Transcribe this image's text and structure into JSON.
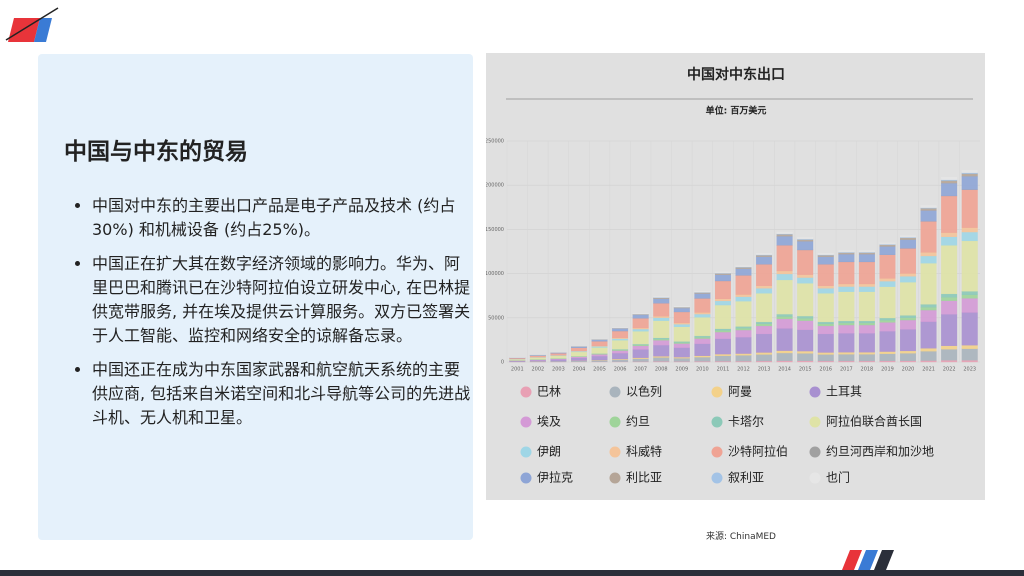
{
  "slide_title": "中国与中东的贸易",
  "bullets": [
    "中国对中东的主要出口产品是电子产品及技术 (约占30%) 和机械设备 (约占25%)。",
    "中国正在扩大其在数字经济领域的影响力。华为、阿里巴巴和腾讯已在沙特阿拉伯设立研发中心, 在巴林提供宽带服务, 并在埃及提供云计算服务。双方已签署关于人工智能、监控和网络安全的谅解备忘录。",
    "中国还正在成为中东国家武器和航空航天系统的主要供应商, 包括来自米诺空间和北斗导航等公司的先进战斗机、无人机和卫星。"
  ],
  "source": "来源: ChinaMED",
  "chart_data": {
    "type": "stacked_bar",
    "title": "中国对中东出口",
    "subtitle": "单位: 百万美元",
    "categories": [
      "2001",
      "2002",
      "2003",
      "2004",
      "2005",
      "2006",
      "2007",
      "2008",
      "2009",
      "2010",
      "2011",
      "2012",
      "2013",
      "2014",
      "2015",
      "2016",
      "2017",
      "2018",
      "2019",
      "2020",
      "2021",
      "2022",
      "2023"
    ],
    "ylim": [
      0,
      250000
    ],
    "yticks": [
      0,
      50000,
      100000,
      150000,
      200000,
      250000
    ],
    "grid": true,
    "series": [
      {
        "name": "巴林",
        "color": "#e8a0b4",
        "values": [
          46,
          74,
          101,
          166,
          240,
          359,
          507,
          682,
          581,
          737,
          940,
          1005,
          1134,
          1355,
          1300,
          1134,
          1161,
          1161,
          1244,
          1318,
          1631,
          1926,
          2000
        ]
      },
      {
        "name": "以色列",
        "color": "#a9b4bd",
        "values": [
          299,
          480,
          659,
          1078,
          1557,
          2336,
          3296,
          4433,
          3774,
          4793,
          6110,
          6530,
          7368,
          8806,
          8447,
          7368,
          7548,
          7548,
          8087,
          8567,
          10604,
          12520,
          13000
        ]
      },
      {
        "name": "阿曼",
        "color": "#f3d18a",
        "values": [
          92,
          148,
          203,
          332,
          479,
          719,
          1014,
          1364,
          1161,
          1475,
          1880,
          2009,
          2267,
          2710,
          2599,
          2267,
          2322,
          2322,
          2488,
          2636,
          3263,
          3852,
          4000
        ]
      },
      {
        "name": "土耳其",
        "color": "#a890d0",
        "values": [
          851,
          1365,
          1876,
          3067,
          4433,
          6649,
          9380,
          12617,
          10741,
          13642,
          17390,
          18585,
          20972,
          25064,
          24043,
          20972,
          21482,
          21482,
          23018,
          24383,
          30181,
          35635,
          37000
        ]
      },
      {
        "name": "埃及",
        "color": "#d49ad6",
        "values": [
          368,
          590,
          811,
          1326,
          1917,
          2875,
          4056,
          5456,
          4645,
          5899,
          7520,
          8037,
          9069,
          10838,
          10397,
          9069,
          9290,
          9290,
          9954,
          10544,
          13051,
          15410,
          16000
        ]
      },
      {
        "name": "约旦",
        "color": "#9fd49a",
        "values": [
          92,
          148,
          203,
          332,
          479,
          719,
          1014,
          1364,
          1161,
          1475,
          1880,
          2009,
          2267,
          2710,
          2599,
          2267,
          2322,
          2322,
          2488,
          2636,
          3263,
          3852,
          4000
        ]
      },
      {
        "name": "卡塔尔",
        "color": "#8cc9b8",
        "values": [
          92,
          148,
          203,
          332,
          479,
          719,
          1014,
          1364,
          1161,
          1475,
          1880,
          2009,
          2267,
          2710,
          2599,
          2267,
          2322,
          2322,
          2488,
          2636,
          3263,
          3852,
          4000
        ]
      },
      {
        "name": "阿拉伯联合酋长国",
        "color": "#dfe3a6",
        "values": [
          1311,
          2103,
          2890,
          4725,
          6829,
          10243,
          14450,
          19437,
          16547,
          21016,
          26790,
          28631,
          32308,
          38612,
          37039,
          32308,
          33094,
          33094,
          35460,
          37563,
          46495,
          54897,
          57000
        ]
      },
      {
        "name": "伊朗",
        "color": "#9fd6e6",
        "values": [
          230,
          369,
          507,
          829,
          1198,
          1797,
          2535,
          3410,
          2903,
          3687,
          4700,
          5023,
          5668,
          6774,
          6498,
          5668,
          5806,
          5806,
          6221,
          6590,
          8157,
          9631,
          10000
        ]
      },
      {
        "name": "科威特",
        "color": "#f4c49a",
        "values": [
          115,
          185,
          254,
          415,
          599,
          899,
          1268,
          1705,
          1452,
          1844,
          2350,
          2512,
          2834,
          3387,
          3249,
          2834,
          2903,
          2903,
          3111,
          3295,
          4079,
          4816,
          5000
        ]
      },
      {
        "name": "沙特阿拉伯",
        "color": "#efa394",
        "values": [
          989,
          1587,
          2180,
          3565,
          5151,
          7727,
          10901,
          14663,
          12483,
          15854,
          20210,
          21599,
          24372,
          29128,
          27941,
          24372,
          24966,
          24966,
          26750,
          28337,
          35075,
          41413,
          43000
        ]
      },
      {
        "name": "约旦河西岸和加沙地",
        "color": "#a0a0a0",
        "values": [
          2,
          4,
          5,
          8,
          12,
          18,
          25,
          34,
          29,
          37,
          47,
          50,
          57,
          68,
          65,
          57,
          58,
          58,
          62,
          66,
          82,
          96,
          100
        ]
      },
      {
        "name": "伊拉克",
        "color": "#8ea5d6",
        "values": [
          345,
          554,
          761,
          1244,
          1797,
          2696,
          3803,
          5115,
          4355,
          5531,
          7050,
          7535,
          8502,
          10161,
          9747,
          8502,
          8709,
          8709,
          9332,
          9885,
          12236,
          14447,
          15000
        ]
      },
      {
        "name": "利比亚",
        "color": "#b5a597",
        "values": [
          69,
          111,
          152,
          249,
          359,
          539,
          761,
          1023,
          871,
          1106,
          1410,
          1507,
          1700,
          2032,
          1949,
          1700,
          1742,
          1742,
          1866,
          1977,
          2447,
          2889,
          3000
        ]
      },
      {
        "name": "叙利亚",
        "color": "#a3c3e6",
        "values": [
          23,
          37,
          51,
          83,
          120,
          180,
          254,
          341,
          290,
          369,
          470,
          502,
          567,
          677,
          650,
          567,
          581,
          581,
          622,
          659,
          816,
          963,
          1000
        ]
      },
      {
        "name": "也门",
        "color": "#e6e6e6",
        "values": [
          69,
          111,
          152,
          249,
          359,
          539,
          761,
          1023,
          871,
          1106,
          1410,
          1507,
          1700,
          2032,
          1949,
          1700,
          1742,
          1742,
          1866,
          1977,
          2447,
          2889,
          3000
        ]
      }
    ]
  }
}
